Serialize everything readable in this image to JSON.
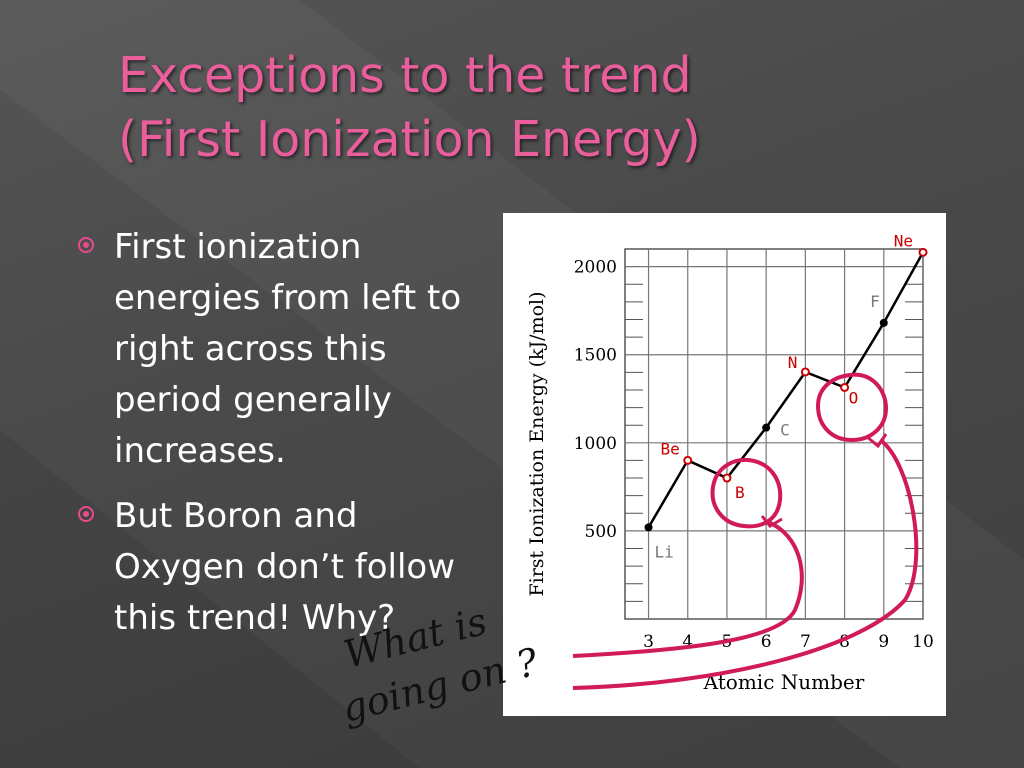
{
  "slide": {
    "title_line1": "Exceptions to the trend",
    "title_line2": "(First Ionization Energy)",
    "bullets": [
      "First ionization energies from left to right across this period generally increases.",
      "But Boron and Oxygen don’t follow this trend! Why?"
    ],
    "handwriting": [
      "What is",
      "going on ?"
    ]
  },
  "colors": {
    "title": "#ea5e9c",
    "bullet_marker": "#e94a8c",
    "annotation": "#d01a5a",
    "exception_label": "#cc0000"
  },
  "chart_data": {
    "type": "line",
    "xlabel": "Atomic Number",
    "ylabel": "First Ionization Energy (kJ/mol)",
    "x_ticks": [
      "3",
      "4",
      "5",
      "6",
      "7",
      "8",
      "9",
      "10"
    ],
    "y_ticks": [
      "500",
      "1000",
      "1500",
      "2000"
    ],
    "xlim": [
      2.4,
      10
    ],
    "ylim": [
      0,
      2100
    ],
    "grid": true,
    "points": [
      {
        "x": 3,
        "y": 520,
        "label": "Li",
        "highlight": false
      },
      {
        "x": 4,
        "y": 900,
        "label": "Be",
        "highlight": true
      },
      {
        "x": 5,
        "y": 800,
        "label": "B",
        "highlight": true
      },
      {
        "x": 6,
        "y": 1086,
        "label": "C",
        "highlight": false
      },
      {
        "x": 7,
        "y": 1402,
        "label": "N",
        "highlight": true
      },
      {
        "x": 8,
        "y": 1314,
        "label": "O",
        "highlight": true
      },
      {
        "x": 9,
        "y": 1681,
        "label": "F",
        "highlight": false
      },
      {
        "x": 10,
        "y": 2081,
        "label": "Ne",
        "highlight": true
      }
    ],
    "circled": [
      "B",
      "O"
    ]
  }
}
